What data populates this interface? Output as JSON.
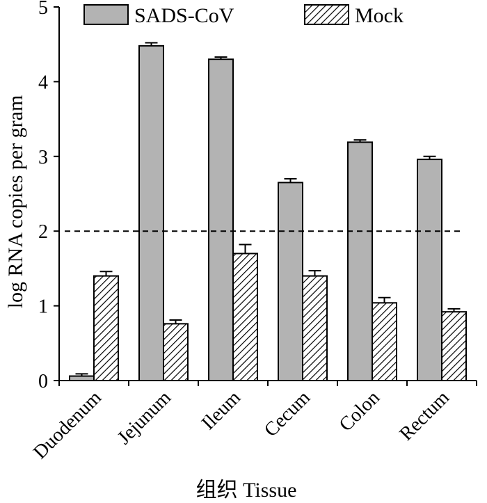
{
  "chart_data": {
    "type": "bar",
    "title": "",
    "xlabel": "组织 Tissue",
    "ylabel": "log RNA copies per gram",
    "ylim": [
      0,
      5
    ],
    "yticks": [
      "0",
      "1",
      "2",
      "3",
      "4",
      "5"
    ],
    "categories": [
      "Duodenum",
      "Jejunum",
      "Ileum",
      "Cecum",
      "Colon",
      "Rectum"
    ],
    "series": [
      {
        "name": "SADS-CoV",
        "fill": "#b3b3b3",
        "pattern": "solid",
        "values": [
          0.06,
          4.48,
          4.3,
          2.65,
          3.19,
          2.96
        ],
        "errors": [
          0.03,
          0.04,
          0.03,
          0.05,
          0.03,
          0.04
        ]
      },
      {
        "name": "Mock",
        "fill": "#ffffff",
        "pattern": "diagonal-hatch",
        "values": [
          1.4,
          0.76,
          1.7,
          1.4,
          1.04,
          0.92
        ],
        "errors": [
          0.06,
          0.05,
          0.12,
          0.07,
          0.07,
          0.04
        ]
      }
    ],
    "threshold_line": {
      "value": 2,
      "style": "dashed"
    },
    "legend": {
      "position": "top"
    },
    "grid": false
  }
}
